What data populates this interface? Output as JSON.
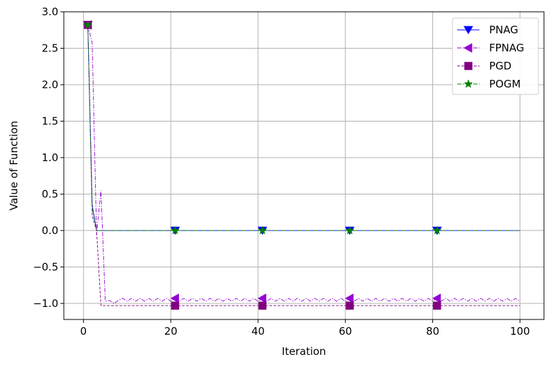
{
  "chart_data": {
    "type": "line",
    "xlabel": "Iteration",
    "ylabel": "Value of Function",
    "xlim": [
      -4.5,
      105.5
    ],
    "ylim": [
      -1.22,
      3.0
    ],
    "xticks": [
      0,
      20,
      40,
      60,
      80,
      100
    ],
    "yticks": [
      -1.0,
      -0.5,
      0.0,
      0.5,
      1.0,
      1.5,
      2.0,
      2.5,
      3.0
    ],
    "ytick_labels": [
      "−1.0",
      "−0.5",
      "0.0",
      "0.5",
      "1.0",
      "1.5",
      "2.0",
      "2.5",
      "3.0"
    ],
    "grid": true,
    "legend_position": "top-right",
    "markevery": [
      1,
      21,
      41,
      61,
      81
    ],
    "series": [
      {
        "name": "PNAG",
        "color": "#0000ff",
        "marker": "triangle-down",
        "linestyle": "solid",
        "x": [
          1,
          2,
          3,
          4,
          5,
          10,
          20,
          21,
          40,
          41,
          60,
          61,
          80,
          81,
          100
        ],
        "y": [
          2.82,
          0.35,
          0.0,
          0.0,
          0.0,
          0.0,
          0.0,
          0.0,
          0.0,
          0.0,
          0.0,
          0.0,
          0.0,
          0.0,
          0.0
        ]
      },
      {
        "name": "FPNAG",
        "color": "#9400d3",
        "marker": "triangle-left",
        "linestyle": "dashdot",
        "x": [
          1,
          2,
          3,
          4,
          5,
          6,
          7,
          8,
          9,
          10,
          11,
          12,
          13,
          14,
          15,
          16,
          17,
          18,
          19,
          20,
          21,
          22,
          23,
          24,
          25,
          26,
          27,
          28,
          29,
          30,
          31,
          32,
          33,
          34,
          35,
          36,
          37,
          38,
          39,
          40,
          41,
          42,
          43,
          44,
          45,
          46,
          47,
          48,
          49,
          50,
          51,
          52,
          53,
          54,
          55,
          56,
          57,
          58,
          59,
          60,
          61,
          62,
          63,
          64,
          65,
          66,
          67,
          68,
          69,
          70,
          71,
          72,
          73,
          74,
          75,
          76,
          77,
          78,
          79,
          80,
          81,
          82,
          83,
          84,
          85,
          86,
          87,
          88,
          89,
          90,
          91,
          92,
          93,
          94,
          95,
          96,
          97,
          98,
          99,
          100
        ],
        "y": [
          2.82,
          2.57,
          -0.05,
          0.55,
          -0.97,
          -0.96,
          -1.0,
          -0.96,
          -0.93,
          -0.97,
          -0.93,
          -0.97,
          -0.93,
          -0.97,
          -0.93,
          -0.97,
          -0.93,
          -0.97,
          -0.93,
          -0.97,
          -0.93,
          -0.97,
          -0.93,
          -0.97,
          -0.93,
          -0.97,
          -0.93,
          -0.97,
          -0.93,
          -0.97,
          -0.93,
          -0.97,
          -0.93,
          -0.97,
          -0.93,
          -0.97,
          -0.93,
          -0.97,
          -0.93,
          -0.97,
          -0.93,
          -0.97,
          -0.93,
          -0.97,
          -0.93,
          -0.97,
          -0.93,
          -0.97,
          -0.93,
          -0.97,
          -0.93,
          -0.97,
          -0.93,
          -0.97,
          -0.93,
          -0.97,
          -0.93,
          -0.97,
          -0.93,
          -0.97,
          -0.93,
          -0.97,
          -0.93,
          -0.97,
          -0.93,
          -0.97,
          -0.93,
          -0.97,
          -0.93,
          -0.97,
          -0.93,
          -0.97,
          -0.93,
          -0.97,
          -0.93,
          -0.97,
          -0.93,
          -0.97,
          -0.93,
          -0.97,
          -0.93,
          -0.97,
          -0.93,
          -0.97,
          -0.93,
          -0.97,
          -0.93,
          -0.97,
          -0.93,
          -0.97,
          -0.93,
          -0.97,
          -0.93,
          -0.97,
          -0.93,
          -0.97,
          -0.93,
          -0.97,
          -0.93,
          -0.97
        ]
      },
      {
        "name": "PGD",
        "color": "#800080",
        "marker": "square",
        "linestyle": "dashed",
        "x": [
          1,
          2,
          3,
          4,
          5,
          6,
          7,
          8,
          20,
          21,
          40,
          41,
          60,
          61,
          80,
          81,
          100
        ],
        "y": [
          2.82,
          0.2,
          0.0,
          -1.03,
          -1.03,
          -1.03,
          -1.03,
          -1.03,
          -1.03,
          -1.03,
          -1.03,
          -1.03,
          -1.03,
          -1.03,
          -1.03,
          -1.03,
          -1.03
        ]
      },
      {
        "name": "POGM",
        "color": "#008000",
        "marker": "star",
        "linestyle": "dashdot",
        "x": [
          1,
          2,
          3,
          4,
          5,
          10,
          20,
          21,
          40,
          41,
          60,
          61,
          80,
          81,
          100
        ],
        "y": [
          2.82,
          0.3,
          0.0,
          0.0,
          0.0,
          0.0,
          0.0,
          0.0,
          0.0,
          0.0,
          0.0,
          0.0,
          0.0,
          0.0,
          0.0
        ]
      }
    ]
  }
}
